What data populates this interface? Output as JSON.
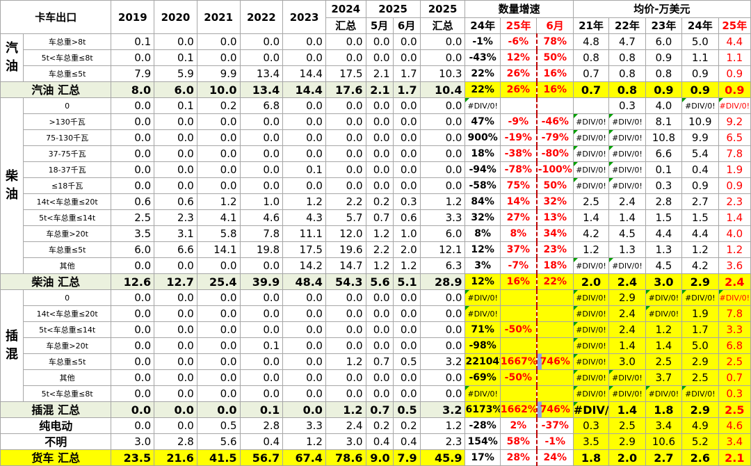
{
  "header": {
    "corner": "卡车出口",
    "years": [
      "2019",
      "2020",
      "2021",
      "2022",
      "2023"
    ],
    "y2024_top": "2024",
    "y2024_bottom": "汇总",
    "y2025": "2025",
    "may": "5月",
    "jun": "6月",
    "y2025b_top": "2025",
    "y2025b_bottom": "汇总",
    "growth": "数量增速",
    "g24": "24年",
    "g25": "25年",
    "g6": "6月",
    "price": "均价-万美元",
    "p21": "21年",
    "p22": "22年",
    "p23": "23年",
    "p24": "24年",
    "p25": "25年"
  },
  "cats": {
    "gasoline": "汽油",
    "diesel": "柴油",
    "phev": "插混"
  },
  "rows": [
    {
      "k": "sub",
      "label": "车总重>8t",
      "v": [
        "0.1",
        "0.0",
        "0.0",
        "0.0",
        "0.0",
        "0.0",
        "0.0",
        "0.0",
        "0.0"
      ],
      "g": [
        "-1%",
        "-6%",
        "78%"
      ],
      "p": [
        "4.8",
        "4.7",
        "6.0",
        "5.0",
        "4.4"
      ]
    },
    {
      "k": "sub",
      "label": "5t<车总重≤8t",
      "v": [
        "0.0",
        "0.1",
        "0.0",
        "0.0",
        "0.0",
        "0.0",
        "0.0",
        "0.0",
        "0.0"
      ],
      "g": [
        "-43%",
        "12%",
        "50%"
      ],
      "p": [
        "0.8",
        "0.8",
        "0.9",
        "1.1",
        "1.1"
      ]
    },
    {
      "k": "sub",
      "label": "车总重≤5t",
      "v": [
        "7.9",
        "5.9",
        "9.9",
        "13.4",
        "14.4",
        "17.5",
        "2.1",
        "1.7",
        "10.3"
      ],
      "g": [
        "22%",
        "26%",
        "16%"
      ],
      "p": [
        "0.7",
        "0.8",
        "0.8",
        "0.9",
        "0.9"
      ]
    },
    {
      "k": "tot",
      "label": "汽油 汇总",
      "v": [
        "8.0",
        "6.0",
        "10.0",
        "13.4",
        "14.4",
        "17.6",
        "2.1",
        "1.7",
        "10.4"
      ],
      "g": [
        "22%",
        "26%",
        "16%"
      ],
      "p": [
        "0.7",
        "0.8",
        "0.9",
        "0.9",
        "0.9"
      ]
    },
    {
      "k": "sub",
      "label": "0",
      "v": [
        "0.0",
        "0.1",
        "0.2",
        "6.8",
        "0.0",
        "0.0",
        "0.0",
        "0.0",
        "0.0"
      ],
      "g": [
        "#DIV/0!",
        "",
        ""
      ],
      "p": [
        "",
        "0.3",
        "4.0",
        "#DIV/0!",
        "#DIV/0!"
      ],
      "p25": "#DIV/0!"
    },
    {
      "k": "sub",
      "label": ">130千瓦",
      "v": [
        "0.0",
        "0.0",
        "0.0",
        "0.0",
        "0.0",
        "0.0",
        "0.0",
        "0.0",
        "0.0"
      ],
      "g": [
        "47%",
        "-9%",
        "-46%"
      ],
      "p": [
        "#DIV/0!",
        "#DIV/0!",
        "8.1",
        "10.9",
        "9.2"
      ]
    },
    {
      "k": "sub",
      "label": "75-130千瓦",
      "v": [
        "0.0",
        "0.0",
        "0.0",
        "0.0",
        "0.0",
        "0.0",
        "0.0",
        "0.0",
        "0.0"
      ],
      "g": [
        "900%",
        "-19%",
        "-79%"
      ],
      "p": [
        "#DIV/0!",
        "#DIV/0!",
        "10.8",
        "9.9",
        "6.5"
      ]
    },
    {
      "k": "sub",
      "label": "37-75千瓦",
      "v": [
        "0.0",
        "0.0",
        "0.0",
        "0.0",
        "0.0",
        "0.0",
        "0.0",
        "0.0",
        "0.0"
      ],
      "g": [
        "18%",
        "-38%",
        "-80%"
      ],
      "p": [
        "#DIV/0!",
        "#DIV/0!",
        "6.6",
        "5.4",
        "7.8"
      ]
    },
    {
      "k": "sub",
      "label": "18-37千瓦",
      "v": [
        "0.0",
        "0.0",
        "0.0",
        "0.0",
        "0.1",
        "0.0",
        "0.0",
        "0.0",
        "0.0"
      ],
      "g": [
        "-94%",
        "-78%",
        "-100%"
      ],
      "p": [
        "#DIV/0!",
        "#DIV/0!",
        "0.1",
        "0.4",
        "1.9"
      ]
    },
    {
      "k": "sub",
      "label": "≤18千瓦",
      "v": [
        "0.0",
        "0.0",
        "0.0",
        "0.0",
        "0.0",
        "0.0",
        "0.0",
        "0.0",
        "0.0"
      ],
      "g": [
        "-58%",
        "75%",
        "50%"
      ],
      "p": [
        "#DIV/0!",
        "#DIV/0!",
        "0.3",
        "0.9",
        "0.9"
      ]
    },
    {
      "k": "sub",
      "label": "14t<车总重≤20t",
      "v": [
        "0.6",
        "0.6",
        "1.2",
        "1.0",
        "1.2",
        "2.2",
        "0.2",
        "0.3",
        "1.2"
      ],
      "g": [
        "84%",
        "14%",
        "32%"
      ],
      "p": [
        "2.5",
        "2.4",
        "2.8",
        "2.7",
        "2.3"
      ]
    },
    {
      "k": "sub",
      "label": "5t<车总重≤14t",
      "v": [
        "2.5",
        "2.3",
        "4.1",
        "4.6",
        "4.3",
        "5.7",
        "0.7",
        "0.6",
        "3.3"
      ],
      "g": [
        "32%",
        "27%",
        "13%"
      ],
      "p": [
        "1.4",
        "1.4",
        "1.5",
        "1.5",
        "1.4"
      ]
    },
    {
      "k": "sub",
      "label": "车总重>20t",
      "v": [
        "3.5",
        "3.1",
        "5.8",
        "7.8",
        "11.1",
        "12.0",
        "1.2",
        "1.0",
        "6.0"
      ],
      "g": [
        "8%",
        "8%",
        "34%"
      ],
      "p": [
        "4.2",
        "4.5",
        "4.4",
        "4.4",
        "4.0"
      ]
    },
    {
      "k": "sub",
      "label": "车总重≤5t",
      "v": [
        "6.0",
        "6.6",
        "14.1",
        "19.8",
        "17.5",
        "19.6",
        "2.2",
        "2.0",
        "12.1"
      ],
      "g": [
        "12%",
        "37%",
        "23%"
      ],
      "p": [
        "1.2",
        "1.3",
        "1.3",
        "1.2",
        "1.2"
      ]
    },
    {
      "k": "sub",
      "label": "其他",
      "v": [
        "0.0",
        "0.0",
        "0.0",
        "0.0",
        "14.2",
        "14.7",
        "1.2",
        "1.2",
        "6.3"
      ],
      "g": [
        "3%",
        "-7%",
        "18%"
      ],
      "p": [
        "#DIV/0!",
        "#DIV/0!",
        "4.5",
        "4.2",
        "3.6"
      ]
    },
    {
      "k": "tot",
      "label": "柴油 汇总",
      "v": [
        "12.6",
        "12.7",
        "25.4",
        "39.9",
        "48.4",
        "54.3",
        "5.6",
        "5.1",
        "28.9"
      ],
      "g": [
        "12%",
        "16%",
        "22%"
      ],
      "p": [
        "2.0",
        "2.4",
        "3.0",
        "2.9",
        "2.4"
      ]
    },
    {
      "k": "sub",
      "label": "0",
      "v": [
        "0.0",
        "0.0",
        "0.0",
        "0.0",
        "0.0",
        "0.0",
        "0.0",
        "0.0",
        "0.0"
      ],
      "g": [
        "#DIV/0!",
        "",
        ""
      ],
      "p": [
        "#DIV/0!",
        "2.9",
        "#DIV/0!",
        "#DIV/0!",
        "#DIV/0!"
      ]
    },
    {
      "k": "sub",
      "label": "14t<车总重≤20t",
      "v": [
        "0.0",
        "0.0",
        "0.0",
        "0.0",
        "0.0",
        "0.0",
        "0.0",
        "0.0",
        "0.0"
      ],
      "g": [
        "#DIV/0!",
        "",
        ""
      ],
      "p": [
        "#DIV/0!",
        "2.4",
        "#DIV/0!",
        "1.9",
        "7.8"
      ]
    },
    {
      "k": "sub",
      "label": "5t<车总重≤14t",
      "v": [
        "0.0",
        "0.0",
        "0.0",
        "0.0",
        "0.0",
        "0.0",
        "0.0",
        "0.0",
        "0.0"
      ],
      "g": [
        "71%",
        "-50%",
        ""
      ],
      "p": [
        "#DIV/0!",
        "2.4",
        "1.2",
        "1.7",
        "3.3"
      ]
    },
    {
      "k": "sub",
      "label": "车总重>20t",
      "v": [
        "0.0",
        "0.0",
        "0.0",
        "0.1",
        "0.0",
        "0.0",
        "0.0",
        "0.0",
        "0.0"
      ],
      "g": [
        "-98%",
        "",
        ""
      ],
      "p": [
        "#DIV/0!",
        "1.4",
        "1.4",
        "5.0",
        "6.8"
      ]
    },
    {
      "k": "sub",
      "label": "车总重≤5t",
      "v": [
        "0.0",
        "0.0",
        "0.0",
        "0.0",
        "0.0",
        "1.2",
        "0.7",
        "0.5",
        "3.2"
      ],
      "g": [
        "22104%",
        "1667%",
        "746%"
      ],
      "p": [
        "#DIV/0!",
        "3.0",
        "2.5",
        "2.9",
        "2.5"
      ]
    },
    {
      "k": "sub",
      "label": "其他",
      "v": [
        "0.0",
        "0.0",
        "0.0",
        "0.0",
        "0.0",
        "0.0",
        "0.0",
        "0.0",
        "0.0"
      ],
      "g": [
        "-69%",
        "-50%",
        ""
      ],
      "p": [
        "#DIV/0!",
        "#DIV/0!",
        "3.7",
        "2.5",
        "0.7"
      ]
    },
    {
      "k": "sub",
      "label": "5t<车总重≤8t",
      "v": [
        "0.0",
        "0.0",
        "0.0",
        "0.0",
        "0.0",
        "0.0",
        "0.0",
        "0.0",
        "0.0"
      ],
      "g": [
        "#DIV/0!",
        "",
        ""
      ],
      "p": [
        "#DIV/0!",
        "#DIV/0!",
        "#DIV/0!",
        "#DIV/0!",
        "0.3"
      ]
    },
    {
      "k": "tot",
      "label": "插混 汇总",
      "v": [
        "0.0",
        "0.0",
        "0.0",
        "0.1",
        "0.0",
        "1.2",
        "0.7",
        "0.5",
        "3.2"
      ],
      "g": [
        "6173%",
        "1662%",
        "746%"
      ],
      "p": [
        "#DIV/0!",
        "1.4",
        "1.8",
        "2.9",
        "2.5"
      ]
    },
    {
      "k": "bev",
      "label": "纯电动",
      "v": [
        "0.0",
        "0.0",
        "0.5",
        "2.8",
        "3.3",
        "2.4",
        "0.2",
        "0.2",
        "1.2"
      ],
      "g": [
        "-28%",
        "2%",
        "-37%"
      ],
      "p": [
        "0.3",
        "2.5",
        "3.4",
        "4.9",
        "4.6"
      ]
    },
    {
      "k": "bev",
      "label": "不明",
      "v": [
        "3.0",
        "2.8",
        "5.6",
        "0.4",
        "1.2",
        "3.0",
        "0.4",
        "0.4",
        "2.3"
      ],
      "g": [
        "154%",
        "58%",
        "-1%"
      ],
      "p": [
        "3.5",
        "2.9",
        "10.6",
        "5.2",
        "3.4"
      ]
    },
    {
      "k": "grand",
      "label": "货车 汇总",
      "v": [
        "23.5",
        "21.6",
        "41.5",
        "56.7",
        "67.4",
        "78.6",
        "9.0",
        "7.9",
        "45.9"
      ],
      "g": [
        "17%",
        "28%",
        "24%"
      ],
      "p": [
        "1.8",
        "2.0",
        "2.7",
        "2.6",
        "2.1"
      ]
    }
  ]
}
